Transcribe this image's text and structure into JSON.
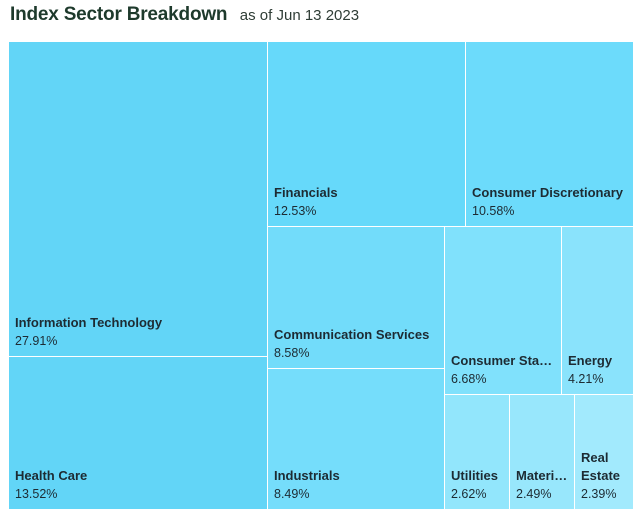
{
  "header": {
    "title": "Index Sector Breakdown",
    "as_of": "as of Jun 13 2023"
  },
  "chart_data": {
    "type": "treemap",
    "title": "Index Sector Breakdown",
    "subtitle": "as of Jun 13 2023",
    "unit": "%",
    "categories": [
      {
        "name": "Information Technology",
        "display_name": "Information Technology",
        "value": 27.91,
        "label": "27.91%",
        "color": "#62d5f7"
      },
      {
        "name": "Health Care",
        "display_name": "Health Care",
        "value": 13.52,
        "label": "13.52%",
        "color": "#62d5f7"
      },
      {
        "name": "Financials",
        "display_name": "Financials",
        "value": 12.53,
        "label": "12.53%",
        "color": "#66d9fa"
      },
      {
        "name": "Consumer Discretionary",
        "display_name": "Consumer Discretionary",
        "value": 10.58,
        "label": "10.58%",
        "color": "#6cdbfb"
      },
      {
        "name": "Communication Services",
        "display_name": "Communication Services",
        "value": 8.58,
        "label": "8.58%",
        "color": "#72dcfa"
      },
      {
        "name": "Industrials",
        "display_name": "Industrials",
        "value": 8.49,
        "label": "8.49%",
        "color": "#75ddfb"
      },
      {
        "name": "Consumer Staples",
        "display_name": "Consumer Stapl...",
        "value": 6.68,
        "label": "6.68%",
        "color": "#80e1fc"
      },
      {
        "name": "Energy",
        "display_name": "Energy",
        "value": 4.21,
        "label": "4.21%",
        "color": "#8ae3fc"
      },
      {
        "name": "Utilities",
        "display_name": "Utilities",
        "value": 2.62,
        "label": "2.62%",
        "color": "#92e6fc"
      },
      {
        "name": "Materials",
        "display_name": "Materia...",
        "value": 2.49,
        "label": "2.49%",
        "color": "#98e7fc"
      },
      {
        "name": "Real Estate",
        "display_name": "Real Estate",
        "value": 2.39,
        "label": "2.39%",
        "color": "#a2eafd"
      }
    ]
  }
}
